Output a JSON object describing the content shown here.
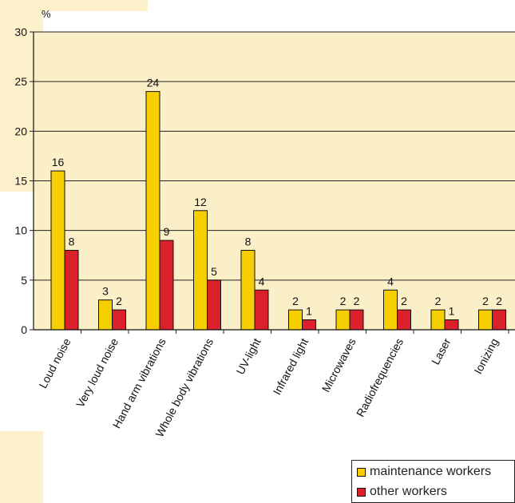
{
  "colors": {
    "maintenance": "#f5cf00",
    "other": "#d9202b",
    "plot_bg": "#fbefc8",
    "axis": "#111111"
  },
  "chart_data": {
    "type": "bar",
    "ylabel": "%",
    "ylim": [
      0,
      30
    ],
    "yticks": [
      0,
      5,
      10,
      15,
      20,
      25,
      30
    ],
    "grid": true,
    "categories": [
      "Loud noise",
      "Very loud noise",
      "Hand arm vibrations",
      "Whole body vibrations",
      "UV-light",
      "Infrared light",
      "Microwaves",
      "Radiofrequencies",
      "Laser",
      "Ionizing"
    ],
    "series": [
      {
        "name": "maintenance workers",
        "values": [
          16,
          3,
          24,
          12,
          8,
          2,
          2,
          4,
          2,
          2
        ]
      },
      {
        "name": "other workers",
        "values": [
          8,
          2,
          9,
          5,
          4,
          1,
          2,
          2,
          1,
          2
        ]
      }
    ],
    "legend_position": "bottom-right"
  }
}
